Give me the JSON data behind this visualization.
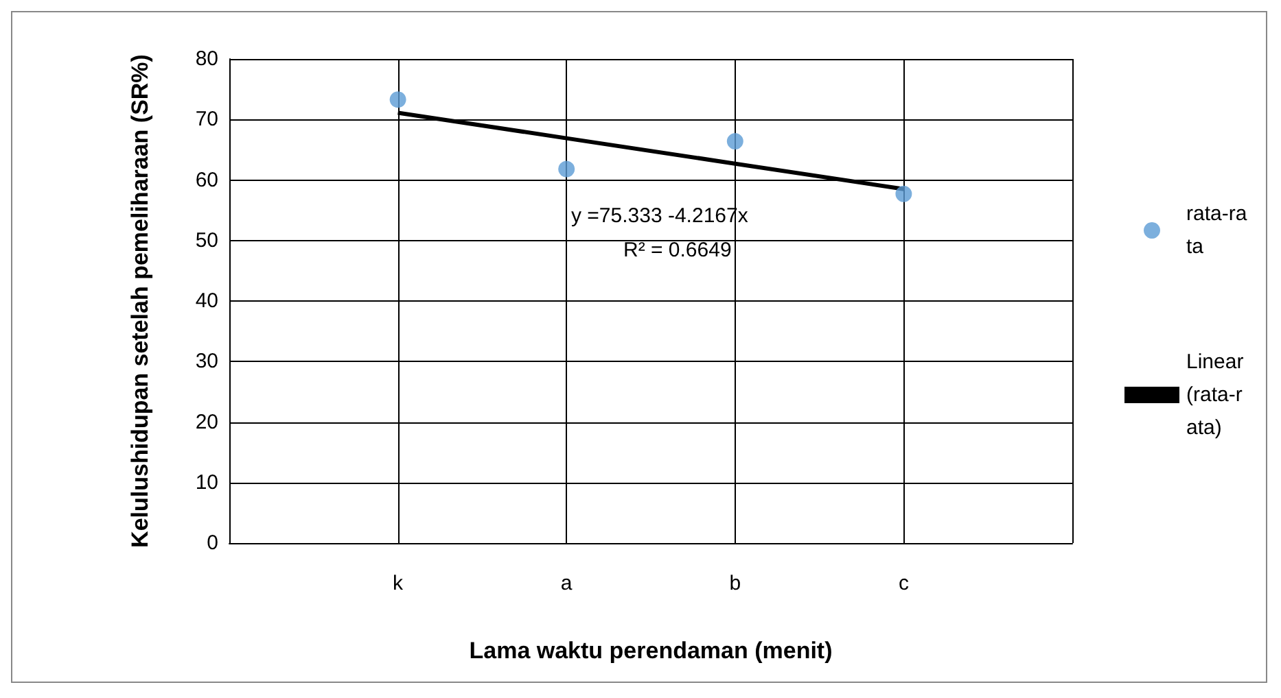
{
  "chart_data": {
    "type": "scatter",
    "categories": [
      null,
      "k",
      "a",
      "b",
      "c",
      null
    ],
    "series": [
      {
        "name": "rata-rata",
        "color": "#5b9bd5",
        "marker": "circle",
        "values": [
          null,
          73.3,
          61.8,
          66.4,
          57.7,
          null
        ]
      },
      {
        "name": "Linear (rata-rata)",
        "type": "line",
        "color": "#000000",
        "marker": "none",
        "values": [
          null,
          71.1,
          66.9,
          62.7,
          58.5,
          null
        ]
      }
    ],
    "xlabel": "Lama waktu perendaman (menit)",
    "ylabel": "Kelulushidupan setelah pemeliharaan (SR%)",
    "ylim": [
      0,
      80
    ],
    "yticks": [
      0,
      10,
      20,
      30,
      40,
      50,
      60,
      70,
      80
    ],
    "grid": true,
    "legend": "right",
    "annotations": [
      "y =75.333 -4.2167x",
      "R² = 0.6649"
    ]
  }
}
